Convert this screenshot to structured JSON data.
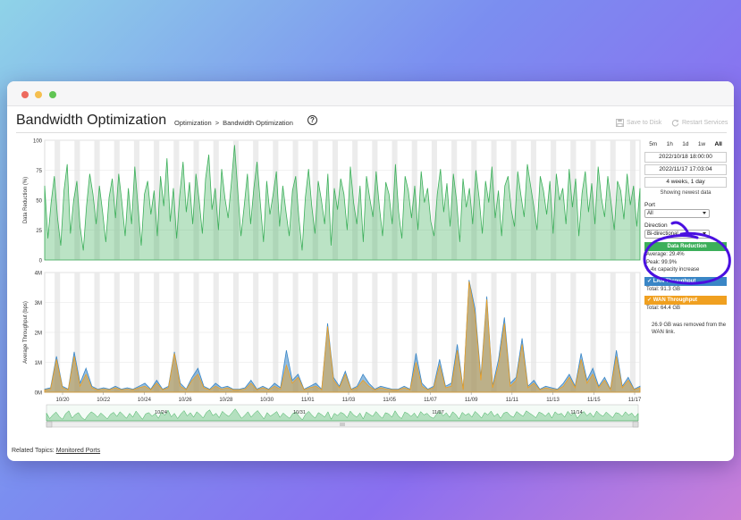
{
  "window": {
    "title": "Bandwidth Optimization"
  },
  "header": {
    "title": "Bandwidth Optimization",
    "breadcrumb": [
      "Optimization",
      "Bandwidth Optimization"
    ],
    "help": "?",
    "save_label": "Save to Disk",
    "restart_label": "Restart Services"
  },
  "side": {
    "ranges": [
      "5m",
      "1h",
      "1d",
      "1w",
      "All"
    ],
    "active_range": "All",
    "start": "2022/10/18 18:00:00",
    "end": "2022/11/17 17:03:04",
    "duration": "4 weeks, 1 day",
    "note": "Showing newest data",
    "port_label": "Port",
    "port_value": "All",
    "direction_label": "Direction",
    "direction_value": "Bi-directional",
    "data_reduction": {
      "title": "Data Reduction",
      "average": "Average: 29.4%",
      "peak": "Peak: 99.9%",
      "capacity": "1.4x capacity increase"
    },
    "lan": {
      "title": "LAN Throughput",
      "total": "Total: 91.3 GB"
    },
    "wan": {
      "title": "WAN Throughput",
      "total": "Total: 64.4 GB"
    },
    "summary": "26.9 GB was removed from the WAN link."
  },
  "related": {
    "label": "Related Topics:",
    "link": "Monitored Ports"
  },
  "colors": {
    "reduction": "#3caf5a",
    "lan": "#3a86c6",
    "wan": "#f0a020",
    "annotation": "#4a10e0"
  },
  "icons": {
    "save": "floppy-icon",
    "restart": "refresh-icon",
    "help": "question-circle-icon"
  },
  "chart_data": [
    {
      "type": "area",
      "ylabel": "Data Reduction (%)",
      "ylim": [
        0,
        100
      ],
      "yticks": [
        "0",
        "25",
        "50",
        "75",
        "100"
      ],
      "values": [
        62,
        18,
        48,
        70,
        35,
        12,
        58,
        80,
        22,
        50,
        66,
        28,
        8,
        45,
        72,
        55,
        30,
        62,
        40,
        15,
        52,
        68,
        35,
        72,
        48,
        20,
        60,
        30,
        78,
        45,
        12,
        55,
        66,
        38,
        58,
        20,
        70,
        45,
        85,
        32,
        60,
        18,
        55,
        82,
        40,
        65,
        30,
        72,
        50,
        22,
        68,
        88,
        42,
        60,
        25,
        76,
        52,
        35,
        64,
        96,
        58,
        20,
        45,
        72,
        30,
        60,
        82,
        48,
        15,
        66,
        38,
        55,
        74,
        28,
        62,
        40,
        20,
        58,
        70,
        35,
        8,
        52,
        76,
        45,
        22,
        66,
        50,
        30,
        72,
        12,
        60,
        42,
        68,
        55,
        25,
        78,
        48,
        30,
        62,
        15,
        70,
        52,
        36,
        74,
        45,
        20,
        65,
        55,
        30,
        80,
        40,
        18,
        70,
        58,
        35,
        62,
        25,
        74,
        48,
        60,
        32,
        20,
        55,
        76,
        40,
        64,
        28,
        72,
        50,
        15,
        68,
        44,
        60,
        30,
        75,
        52,
        22,
        66,
        48,
        78,
        35,
        58,
        20,
        62,
        70,
        42,
        28,
        74,
        54,
        36,
        80,
        62,
        45,
        25,
        70,
        58,
        38,
        66,
        22,
        72,
        50,
        60,
        30,
        76,
        44,
        68,
        20,
        56,
        74,
        40,
        64,
        30,
        78,
        52,
        36,
        70,
        48,
        25,
        66,
        58,
        34,
        72,
        46,
        62,
        28,
        60
      ],
      "shaded_bands": "alternating weekly/day shading"
    },
    {
      "type": "area",
      "ylabel": "Average Throughput (bps)",
      "ylim": [
        0,
        4000000
      ],
      "yticks": [
        "0M",
        "1M",
        "2M",
        "3M",
        "4M"
      ],
      "x_ticks": [
        "10/20",
        "10/22",
        "10/24",
        "10/26",
        "10/28",
        "10/30",
        "11/01",
        "11/03",
        "11/05",
        "11/07",
        "11/09",
        "11/11",
        "11/13",
        "11/15",
        "11/17"
      ],
      "series": [
        {
          "name": "LAN Throughput",
          "values": [
            0.1,
            0.15,
            1.2,
            0.2,
            0.1,
            1.35,
            0.3,
            0.8,
            0.2,
            0.1,
            0.15,
            0.1,
            0.2,
            0.1,
            0.15,
            0.1,
            0.2,
            0.3,
            0.1,
            0.4,
            0.1,
            0.2,
            1.35,
            0.3,
            0.1,
            0.5,
            0.8,
            0.2,
            0.1,
            0.3,
            0.15,
            0.2,
            0.1,
            0.1,
            0.15,
            0.4,
            0.1,
            0.2,
            0.1,
            0.3,
            0.15,
            1.4,
            0.4,
            0.6,
            0.1,
            0.2,
            0.3,
            0.1,
            2.3,
            0.5,
            0.2,
            0.7,
            0.1,
            0.2,
            0.6,
            0.3,
            0.1,
            0.2,
            0.15,
            0.1,
            0.1,
            0.2,
            0.1,
            1.3,
            0.3,
            0.1,
            0.2,
            1.1,
            0.2,
            0.3,
            1.6,
            0.1,
            3.75,
            2.8,
            0.5,
            3.2,
            0.2,
            1.1,
            2.5,
            0.3,
            0.5,
            1.8,
            0.2,
            0.4,
            0.1,
            0.2,
            0.15,
            0.1,
            0.3,
            0.6,
            0.2,
            1.3,
            0.4,
            0.8,
            0.2,
            0.5,
            0.1,
            1.4,
            0.2,
            0.5,
            0.1,
            0.2
          ]
        },
        {
          "name": "WAN Throughput",
          "values": [
            0.08,
            0.1,
            1.1,
            0.15,
            0.08,
            1.2,
            0.2,
            0.6,
            0.15,
            0.08,
            0.1,
            0.08,
            0.15,
            0.08,
            0.1,
            0.08,
            0.15,
            0.2,
            0.08,
            0.3,
            0.08,
            0.15,
            1.3,
            0.2,
            0.08,
            0.4,
            0.6,
            0.15,
            0.08,
            0.2,
            0.1,
            0.15,
            0.08,
            0.08,
            0.1,
            0.3,
            0.08,
            0.15,
            0.08,
            0.2,
            0.1,
            0.9,
            0.3,
            0.5,
            0.08,
            0.15,
            0.2,
            0.08,
            2.2,
            0.4,
            0.15,
            0.6,
            0.08,
            0.15,
            0.4,
            0.2,
            0.08,
            0.15,
            0.1,
            0.08,
            0.08,
            0.15,
            0.08,
            1.0,
            0.2,
            0.08,
            0.15,
            0.9,
            0.15,
            0.2,
            1.4,
            0.08,
            3.7,
            2.6,
            0.4,
            3.1,
            0.15,
            0.9,
            2.3,
            0.2,
            0.4,
            1.6,
            0.15,
            0.3,
            0.08,
            0.15,
            0.1,
            0.08,
            0.2,
            0.5,
            0.15,
            1.1,
            0.3,
            0.6,
            0.15,
            0.4,
            0.08,
            1.2,
            0.15,
            0.4,
            0.08,
            0.15
          ]
        }
      ]
    }
  ],
  "navigator": {
    "labels": [
      "10/24",
      "10/31",
      "11/07",
      "11/14"
    ]
  }
}
